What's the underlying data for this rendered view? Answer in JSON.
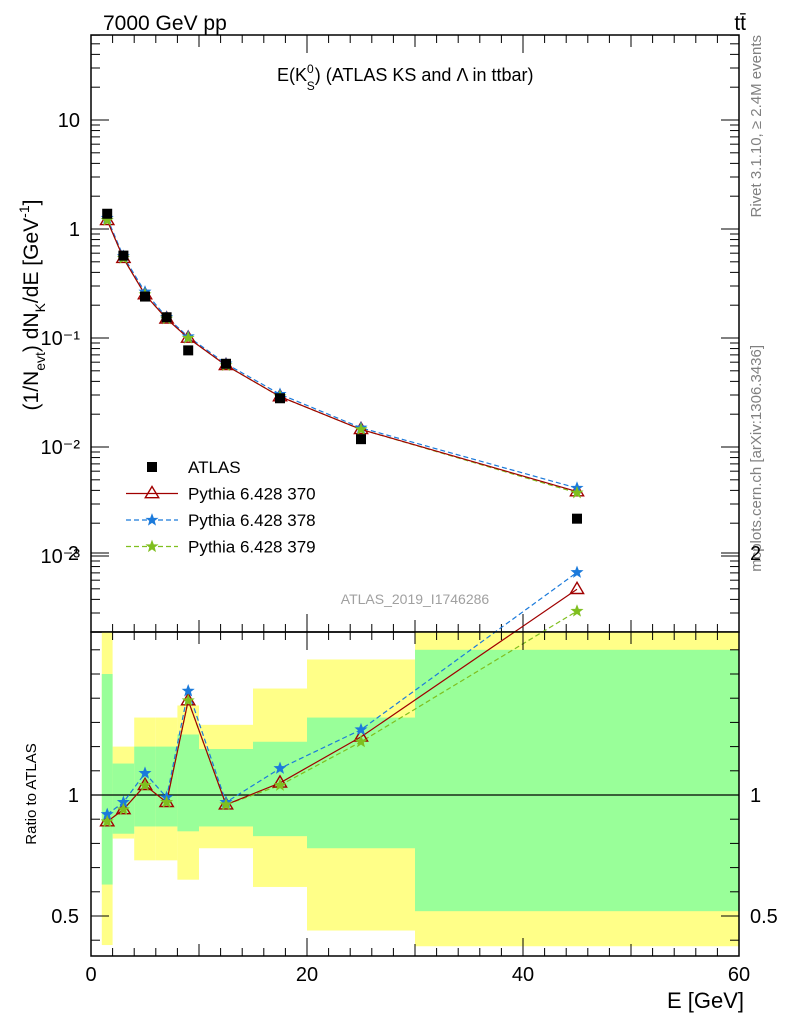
{
  "header": {
    "left": "7000 GeV pp",
    "right": "tt̄",
    "side_top": "Rivet 3.1.10, ≥ 2.4M events",
    "side_bottom": "mcplots.cern.ch [arXiv:1306.3436]"
  },
  "chart_data": {
    "type": "line",
    "title": "E(K_S^0) (ATLAS KS and Λ in ttbar)",
    "title_parts": {
      "prefix": "E(K",
      "sub": "S",
      "sup": "0",
      "suffix": ") (ATLAS KS and Λ in ttbar)"
    },
    "analysis_label": "ATLAS_2019_I1746286",
    "xlabel": "E [GeV]",
    "ylabel": "(1/N_evt) dN_K/dE [GeV⁻¹]",
    "ylabel_parts": {
      "a": "(1/N",
      "b": "evt",
      "c": ") dN",
      "d": "K",
      "e": "/dE [GeV",
      "f": "-1",
      "g": "]"
    },
    "ratio_ylabel": "Ratio to ATLAS",
    "xlim": [
      0,
      60
    ],
    "ylim": [
      0.0002,
      70
    ],
    "yscale": "log",
    "ratio_ylim": [
      0.375,
      2.25
    ],
    "legend_position": "lower-left",
    "x_ticks": [
      "0",
      "20",
      "40",
      "60"
    ],
    "y_ticks": [
      "10⁻³",
      "10⁻²",
      "10⁻¹",
      "1",
      "10"
    ],
    "ratio_ticks": [
      "0.5",
      "1",
      "2"
    ],
    "x": [
      1.5,
      3,
      5,
      7,
      9,
      12.5,
      17.5,
      25,
      45
    ],
    "bins": [
      [
        1,
        2
      ],
      [
        2,
        4
      ],
      [
        4,
        6
      ],
      [
        6,
        8
      ],
      [
        8,
        10
      ],
      [
        10,
        15
      ],
      [
        15,
        20
      ],
      [
        20,
        30
      ],
      [
        30,
        60
      ]
    ],
    "series": [
      {
        "name": "ATLAS",
        "color": "#000000",
        "marker": "square",
        "values": [
          1.38,
          0.57,
          0.24,
          0.155,
          0.077,
          0.058,
          0.028,
          0.0118,
          0.0022
        ]
      },
      {
        "name": "Pythia 6.428 370",
        "color": "#a00000",
        "marker": "triangle",
        "dash": "",
        "values": [
          1.2,
          0.54,
          0.25,
          0.15,
          0.1,
          0.056,
          0.029,
          0.0145,
          0.0039
        ]
      },
      {
        "name": "Pythia 6.428 378",
        "color": "#1b7adb",
        "marker": "star",
        "dash": "5,3",
        "values": [
          1.26,
          0.56,
          0.265,
          0.155,
          0.103,
          0.058,
          0.0305,
          0.015,
          0.0042
        ]
      },
      {
        "name": "Pythia 6.428 379",
        "color": "#7fbf1f",
        "marker": "star",
        "dash": "5,3",
        "values": [
          1.2,
          0.54,
          0.25,
          0.15,
          0.1,
          0.056,
          0.029,
          0.0145,
          0.0038
        ]
      }
    ],
    "ratio_series": [
      {
        "name": "Pythia 6.428 370",
        "values": [
          0.89,
          0.94,
          1.04,
          0.97,
          1.39,
          0.96,
          1.05,
          1.24,
          1.85
        ]
      },
      {
        "name": "Pythia 6.428 378",
        "values": [
          0.92,
          0.97,
          1.09,
          0.99,
          1.43,
          0.97,
          1.11,
          1.27,
          1.92
        ]
      },
      {
        "name": "Pythia 6.428 379",
        "values": [
          0.89,
          0.94,
          1.04,
          0.97,
          1.39,
          0.96,
          1.04,
          1.22,
          1.76
        ]
      }
    ],
    "uncertainty_bands": {
      "inner_color": "#99ff99",
      "outer_color": "#ffff88",
      "inner": [
        [
          0.63,
          1.5
        ],
        [
          0.84,
          1.13
        ],
        [
          0.87,
          1.2
        ],
        [
          0.87,
          1.2
        ],
        [
          0.85,
          1.25
        ],
        [
          0.87,
          1.19
        ],
        [
          0.83,
          1.22
        ],
        [
          0.78,
          1.32
        ],
        [
          0.52,
          1.6
        ]
      ],
      "outer": [
        [
          0.38,
          1.84
        ],
        [
          0.82,
          1.2
        ],
        [
          0.73,
          1.32
        ],
        [
          0.73,
          1.32
        ],
        [
          0.65,
          1.37
        ],
        [
          0.78,
          1.29
        ],
        [
          0.62,
          1.44
        ],
        [
          0.44,
          1.56
        ],
        [
          0.375,
          2.0
        ]
      ]
    }
  }
}
